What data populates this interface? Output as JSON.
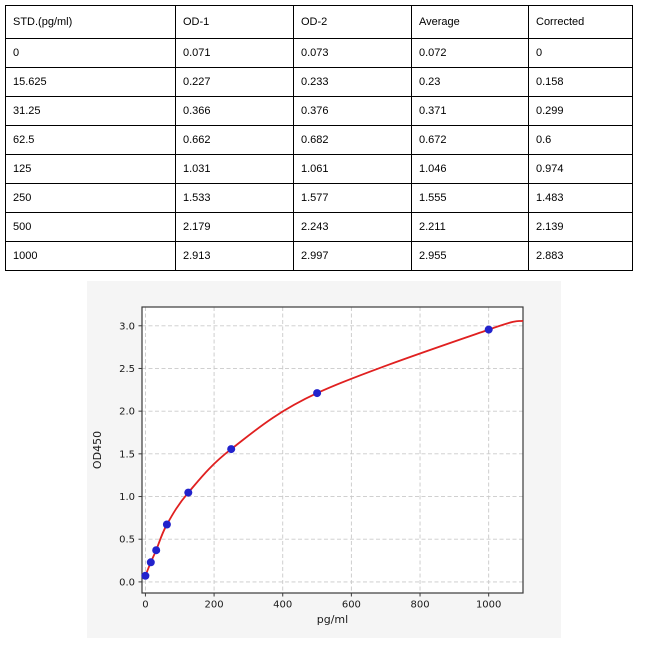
{
  "table": {
    "headers": [
      "STD.(pg/ml)",
      "OD-1",
      "OD-2",
      "Average",
      "Corrected"
    ],
    "rows": [
      [
        "0",
        "0.071",
        "0.073",
        "0.072",
        "0"
      ],
      [
        "15.625",
        "0.227",
        "0.233",
        "0.23",
        "0.158"
      ],
      [
        "31.25",
        "0.366",
        "0.376",
        "0.371",
        "0.299"
      ],
      [
        "62.5",
        "0.662",
        "0.682",
        "0.672",
        "0.6"
      ],
      [
        "125",
        "1.031",
        "1.061",
        "1.046",
        "0.974"
      ],
      [
        "250",
        "1.533",
        "1.577",
        "1.555",
        "1.483"
      ],
      [
        "500",
        "2.179",
        "2.243",
        "2.211",
        "2.139"
      ],
      [
        "1000",
        "2.913",
        "2.997",
        "2.955",
        "2.883"
      ]
    ]
  },
  "chart_data": {
    "type": "scatter",
    "title": "",
    "xlabel": "pg/ml",
    "ylabel": "OD450",
    "x": [
      0,
      15.625,
      31.25,
      62.5,
      125,
      250,
      500,
      1000
    ],
    "y": [
      0.072,
      0.23,
      0.371,
      0.672,
      1.046,
      1.555,
      2.211,
      2.955
    ],
    "fit_curve_points": [
      [
        0,
        0.072
      ],
      [
        15.625,
        0.23
      ],
      [
        31.25,
        0.371
      ],
      [
        62.5,
        0.672
      ],
      [
        125,
        1.046
      ],
      [
        250,
        1.555
      ],
      [
        500,
        2.211
      ],
      [
        1000,
        2.955
      ],
      [
        1100,
        3.06
      ]
    ],
    "xlim": [
      -10,
      1100
    ],
    "ylim": [
      -0.13,
      3.22
    ],
    "x_tick_values": [
      0,
      200,
      400,
      600,
      800,
      1000
    ],
    "x_tick_labels": [
      "0",
      "200",
      "400",
      "600",
      "800",
      "1000"
    ],
    "y_tick_values": [
      0,
      0.5,
      1,
      1.5,
      2,
      2.5,
      3
    ],
    "y_tick_labels": [
      "0.0",
      "0.5",
      "1.0",
      "1.5",
      "2.0",
      "2.5",
      "3.0"
    ],
    "grid": true,
    "grid_style": "dashed",
    "legend": "none",
    "colors": {
      "curve": "#e02020",
      "point": "#2222cc",
      "grid": "#c9c9c9",
      "spine": "#3a3a3a",
      "plot_bg": "#ffffff",
      "figure_bg": "#f5f5f5",
      "text": "#1a1a1a"
    }
  }
}
